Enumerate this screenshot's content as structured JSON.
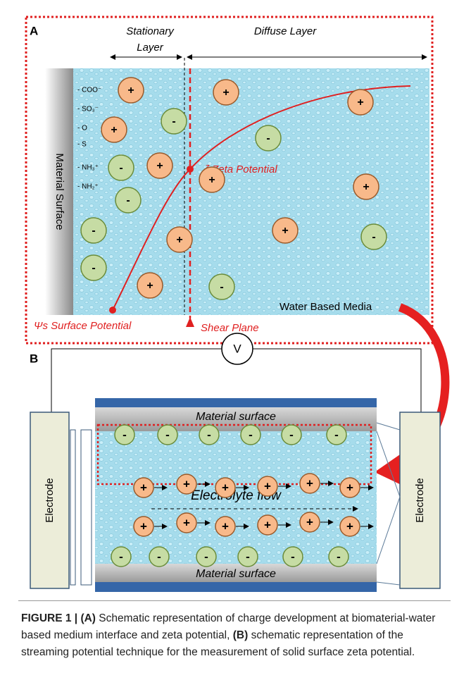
{
  "panel_a": {
    "label": "A",
    "stationary_layer": [
      "Stationary",
      "Layer"
    ],
    "diffuse_layer": "Diffuse Layer",
    "material_surface": "Material Surface",
    "surface_groups": [
      "- COO⁻",
      "- SO₃⁻",
      "- O",
      "- S",
      "- NH₃⁺",
      "- NH₂⁺"
    ],
    "zeta_potential": "ζ Zeta Potential",
    "surface_potential": "Ψs Surface Potential",
    "shear_plane": "Shear Plane",
    "medium": "Water Based Media",
    "ions": [
      "+",
      "-",
      "+",
      "-",
      "+",
      "-",
      "+",
      "+",
      "-",
      "+",
      "+",
      "-",
      "+",
      "+",
      "-",
      "-",
      "+",
      "-"
    ]
  },
  "panel_b": {
    "label": "B",
    "voltmeter": "V",
    "top_surface": "Material surface",
    "bottom_surface": "Material surface",
    "left_electrode": "Electrode",
    "right_electrode": "Electrode",
    "flow": "Electrolyte flow",
    "top_ions": [
      "-",
      "-",
      "-",
      "-",
      "-",
      "-"
    ],
    "upper_flow_ions": [
      "+",
      "+",
      "+",
      "+",
      "+",
      "+"
    ],
    "lower_flow_ions": [
      "+",
      "+",
      "+",
      "+",
      "+",
      "+"
    ],
    "bottom_ions": [
      "-",
      "-",
      "-",
      "-",
      "-",
      "-"
    ]
  },
  "caption": {
    "figure": "FIGURE 1 |",
    "part_a_label": "(A)",
    "part_a_text": "Schematic representation of charge development at biomaterial-water based medium interface and zeta potential,",
    "part_b_label": "(B)",
    "part_b_text": "schematic representation of the streaming potential technique for the measurement of solid surface zeta potential."
  }
}
